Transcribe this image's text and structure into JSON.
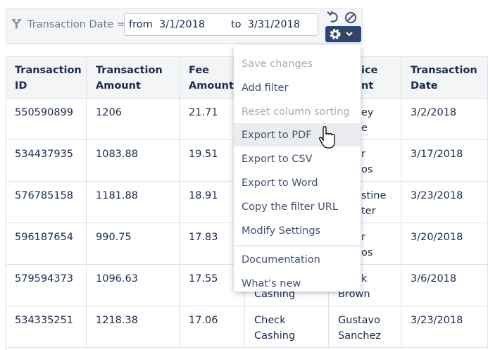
{
  "filter": {
    "label": "Transaction Date =",
    "value": "from  3/1/2018        to  3/31/2018"
  },
  "table": {
    "header": [
      [
        "Transaction",
        "ID"
      ],
      [
        "Transaction",
        "Amount"
      ],
      [
        "Fee",
        "Amount"
      ],
      [],
      [
        "ice",
        "nt"
      ],
      [
        "Transaction",
        "Date"
      ]
    ],
    "rows": [
      [
        [
          "550590899"
        ],
        [
          "1206"
        ],
        [
          "21.71"
        ],
        [],
        [
          "ey",
          "e"
        ],
        [
          "3/2/2018"
        ]
      ],
      [
        [
          "534437935"
        ],
        [
          "1083.88"
        ],
        [
          "19.51"
        ],
        [],
        [
          "r",
          "os"
        ],
        [
          "3/17/2018"
        ]
      ],
      [
        [
          "576785158"
        ],
        [
          "1181.88"
        ],
        [
          "18.91"
        ],
        [],
        [
          "stine",
          "ter"
        ],
        [
          "3/23/2018"
        ]
      ],
      [
        [
          "596187654"
        ],
        [
          "990.75"
        ],
        [
          "17.83"
        ],
        [],
        [
          "r",
          "os"
        ],
        [
          "3/20/2018"
        ]
      ],
      [
        [
          "579594373"
        ],
        [
          "1096.63"
        ],
        [
          "17.55"
        ],
        [
          "Cashing"
        ],
        [
          "k",
          "Brown"
        ],
        [
          "3/6/2018"
        ]
      ],
      [
        [
          "534335251"
        ],
        [
          "1218.38"
        ],
        [
          "17.06"
        ],
        [
          "Check",
          "Cashing"
        ],
        [
          "Gustavo",
          "Sanchez"
        ],
        [
          "3/23/2018"
        ]
      ]
    ]
  },
  "menu": {
    "groups": [
      [
        {
          "label": "Save changes",
          "disabled": true
        },
        {
          "label": "Add filter"
        },
        {
          "label": "Reset column sorting",
          "disabled": true
        },
        {
          "label": "Export to PDF",
          "highlighted": true
        },
        {
          "label": "Export to CSV"
        },
        {
          "label": "Export to Word"
        },
        {
          "label": "Copy the filter URL"
        },
        {
          "label": "Modify Settings"
        }
      ],
      [
        {
          "label": "Documentation"
        },
        {
          "label": "What's new"
        }
      ]
    ]
  }
}
